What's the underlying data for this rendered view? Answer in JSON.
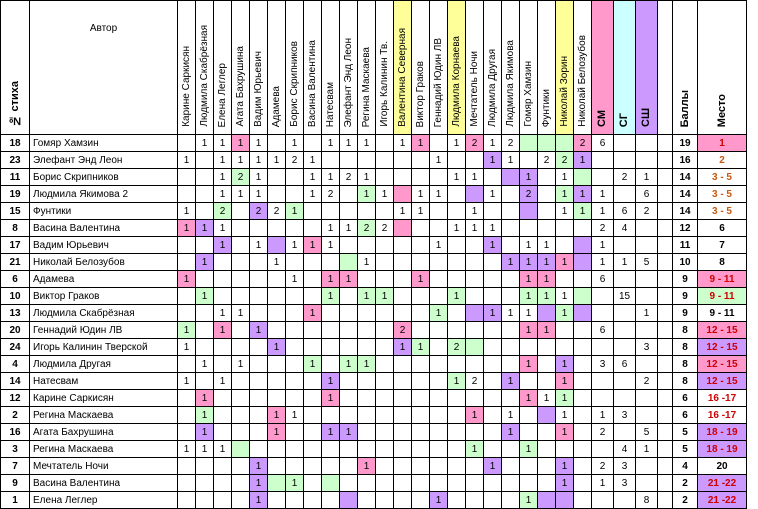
{
  "header": {
    "num": "№ стиха",
    "author": "Автор",
    "voters": [
      "Карине Саркисян",
      "Людмила Скабрёзная",
      "Елена Леглер",
      "Агата Бахрушина",
      "Вадим Юрьевич",
      "Адамева",
      "Борис Скрипников",
      "Васина Валентина",
      "Натесвам",
      "Элефант Энд Леон",
      "Регина Маскаева",
      "Игорь Калинин Тв.",
      "Валентина Северная",
      "Виктор Граков",
      "Геннадий Юдин ЛВ",
      "Людмила Корнаева",
      "Мечтатель Ночи",
      "Людмила Другая",
      "Людмила Якимова",
      "Гомяр Хамзин",
      "Фунтики",
      "Николай Зорин",
      "Николай Белозубов"
    ],
    "cats": [
      "СМ",
      "СГ",
      "СШ"
    ],
    "score": "Баллы",
    "place": "Место"
  },
  "colors": {
    "pink": "#ff99cc",
    "violet": "#cc99ff",
    "green": "#ccffcc",
    "yellow": "#ffff99",
    "cyan": "#ccffff",
    "place_red": "#cc0000",
    "place_orange": "#c65911"
  },
  "rows": [
    {
      "num": "18",
      "author": "Гомяр Хамзин",
      "cells": [
        "",
        "1",
        "1",
        "1",
        "1",
        "",
        "1",
        "",
        "1",
        "1",
        "1",
        "",
        "1",
        "1",
        "",
        "1",
        "2",
        "1",
        "2",
        "",
        "",
        "",
        "2"
      ],
      "cats": [
        "6",
        "",
        ""
      ],
      "score": "19",
      "place": "1"
    },
    {
      "num": "23",
      "author": "Элефант Энд Леон",
      "cells": [
        "1",
        "",
        "1",
        "1",
        "1",
        "1",
        "2",
        "1",
        "",
        "",
        "",
        "",
        "",
        "",
        "1",
        "",
        "",
        "1",
        "1",
        "",
        "2",
        "2",
        "1"
      ],
      "cats": [
        "",
        "",
        ""
      ],
      "score": "16",
      "place": "2"
    },
    {
      "num": "11",
      "author": "Борис Скрипников",
      "cells": [
        "",
        "",
        "1",
        "2",
        "1",
        "",
        "",
        "1",
        "1",
        "2",
        "1",
        "",
        "",
        "",
        "",
        "1",
        "1",
        "",
        "",
        "1",
        "",
        "1",
        ""
      ],
      "cats": [
        "",
        "2",
        "1"
      ],
      "score": "14",
      "place": "3 - 5"
    },
    {
      "num": "19",
      "author": "Людмила Якимова 2",
      "cells": [
        "",
        "",
        "1",
        "1",
        "1",
        "",
        "",
        "1",
        "2",
        "",
        "1",
        "1",
        "",
        "1",
        "1",
        "",
        "",
        "1",
        "",
        "2",
        "",
        "1",
        "1"
      ],
      "cats": [
        "1",
        "",
        "6"
      ],
      "score": "14",
      "place": "3 - 5"
    },
    {
      "num": "15",
      "author": "Фунтики",
      "cells": [
        "1",
        "",
        "2",
        "",
        "2",
        "2",
        "1",
        "",
        "",
        "",
        "",
        "",
        "1",
        "1",
        "",
        "",
        "1",
        "",
        "",
        "",
        "",
        "1",
        "1"
      ],
      "cats": [
        "1",
        "6",
        "2"
      ],
      "score": "14",
      "place": "3 - 5"
    },
    {
      "num": "8",
      "author": "Васина Валентина",
      "cells": [
        "1",
        "1",
        "1",
        "",
        "",
        "",
        "",
        "",
        "1",
        "1",
        "2",
        "2",
        "",
        "",
        "",
        "1",
        "1",
        "1",
        "",
        "",
        "",
        "",
        ""
      ],
      "cats": [
        "2",
        "4",
        ""
      ],
      "score": "12",
      "place": "6"
    },
    {
      "num": "17",
      "author": "Вадим Юрьевич",
      "cells": [
        "",
        "",
        "1",
        "",
        "1",
        "",
        "1",
        "1",
        "1",
        "",
        "",
        "",
        "",
        "",
        "1",
        "",
        "",
        "1",
        "",
        "1",
        "1",
        "",
        ""
      ],
      "cats": [
        "1",
        "",
        ""
      ],
      "score": "11",
      "place": "7"
    },
    {
      "num": "21",
      "author": "Николай Белозубов",
      "cells": [
        "",
        "1",
        "",
        "",
        "",
        "1",
        "",
        "",
        "",
        "",
        "1",
        "",
        "",
        "",
        "",
        "",
        "",
        "",
        "1",
        "1",
        "1",
        "1",
        ""
      ],
      "cats": [
        "1",
        "1",
        "5"
      ],
      "score": "10",
      "place": "8"
    },
    {
      "num": "6",
      "author": "Адамева",
      "cells": [
        "1",
        "",
        "",
        "",
        "",
        "",
        "1",
        "",
        "1",
        "1",
        "",
        "",
        "",
        "1",
        "",
        "",
        "",
        "",
        "",
        "1",
        "1",
        "",
        ""
      ],
      "cats": [
        "6",
        "",
        ""
      ],
      "score": "9",
      "place": "9 - 11"
    },
    {
      "num": "10",
      "author": "Виктор Граков",
      "cells": [
        "",
        "1",
        "",
        "",
        "",
        "",
        "",
        "",
        "1",
        "",
        "1",
        "1",
        "",
        "",
        "",
        "1",
        "",
        "",
        "",
        "1",
        "1",
        "1",
        ""
      ],
      "cats": [
        "",
        "15",
        ""
      ],
      "score": "9",
      "place": "9 - 11"
    },
    {
      "num": "13",
      "author": "Людмила Скабрёзная",
      "cells": [
        "",
        "",
        "1",
        "1",
        "",
        "",
        "",
        "1",
        "",
        "",
        "",
        "",
        "",
        "",
        "1",
        "",
        "",
        "1",
        "1",
        "1",
        "",
        "1",
        ""
      ],
      "cats": [
        "",
        "",
        "1"
      ],
      "score": "9",
      "place": "9 - 11"
    },
    {
      "num": "20",
      "author": "Геннадий Юдин ЛВ",
      "cells": [
        "1",
        "",
        "1",
        "",
        "1",
        "",
        "",
        "",
        "",
        "",
        "",
        "",
        "2",
        "",
        "",
        "",
        "",
        "",
        "",
        "1",
        "1",
        "",
        ""
      ],
      "cats": [
        "6",
        "",
        ""
      ],
      "score": "8",
      "place": "12 - 15"
    },
    {
      "num": "24",
      "author": "Игорь Калинин Тверской",
      "cells": [
        "1",
        "",
        "",
        "",
        "",
        "1",
        "",
        "",
        "",
        "",
        "",
        "",
        "1",
        "1",
        "",
        "2",
        "",
        "",
        "",
        "",
        "",
        "",
        ""
      ],
      "cats": [
        "",
        "",
        "3"
      ],
      "score": "8",
      "place": "12 - 15"
    },
    {
      "num": "4",
      "author": "Людмила Другая",
      "cells": [
        "",
        "1",
        "",
        "1",
        "",
        "",
        "",
        "1",
        "",
        "1",
        "1",
        "",
        "",
        "",
        "",
        "",
        "",
        "",
        "",
        "1",
        "",
        "1",
        ""
      ],
      "cats": [
        "3",
        "6",
        ""
      ],
      "score": "8",
      "place": "12 - 15"
    },
    {
      "num": "14",
      "author": "Натесвам",
      "cells": [
        "1",
        "",
        "1",
        "",
        "",
        "",
        "",
        "",
        "1",
        "",
        "",
        "",
        "",
        "",
        "",
        "1",
        "2",
        "",
        "1",
        "",
        "",
        "1",
        ""
      ],
      "cats": [
        "",
        "",
        "2"
      ],
      "score": "8",
      "place": "12 - 15"
    },
    {
      "num": "12",
      "author": "Карине Саркисян",
      "cells": [
        "",
        "1",
        "",
        "",
        "",
        "",
        "",
        "",
        "1",
        "",
        "",
        "",
        "",
        "",
        "",
        "",
        "",
        "",
        "",
        "1",
        "1",
        "1",
        ""
      ],
      "cats": [
        "",
        "",
        ""
      ],
      "score": "6",
      "place": "16 -17"
    },
    {
      "num": "2",
      "author": "Регина Маскаева",
      "cells": [
        "",
        "1",
        "",
        "",
        "",
        "1",
        "1",
        "",
        "",
        "",
        "",
        "",
        "",
        "",
        "",
        "",
        "1",
        "",
        "1",
        "",
        "",
        "1",
        ""
      ],
      "cats": [
        "1",
        "3",
        ""
      ],
      "score": "6",
      "place": "16 -17"
    },
    {
      "num": "16",
      "author": "Агата Бахрушина",
      "cells": [
        "",
        "1",
        "",
        "",
        "",
        "1",
        "",
        "",
        "1",
        "1",
        "",
        "",
        "",
        "",
        "",
        "",
        "",
        "",
        "1",
        "",
        "",
        "1",
        ""
      ],
      "cats": [
        "2",
        "",
        "5"
      ],
      "score": "5",
      "place": "18 - 19"
    },
    {
      "num": "3",
      "author": "Регина Маскаева",
      "cells": [
        "1",
        "1",
        "1",
        "",
        "",
        "",
        "",
        "",
        "",
        "",
        "",
        "",
        "",
        "",
        "",
        "",
        "1",
        "",
        "",
        "1",
        "",
        "",
        ""
      ],
      "cats": [
        "",
        "4",
        "1"
      ],
      "score": "5",
      "place": "18 - 19"
    },
    {
      "num": "7",
      "author": "Мечтатель Ночи",
      "cells": [
        "",
        "",
        "",
        "",
        "1",
        "",
        "",
        "",
        "",
        "",
        "1",
        "",
        "",
        "",
        "",
        "",
        "",
        "1",
        "",
        "",
        "",
        "1",
        ""
      ],
      "cats": [
        "2",
        "3",
        ""
      ],
      "score": "4",
      "place": "20"
    },
    {
      "num": "9",
      "author": "Васина Валентина",
      "cells": [
        "",
        "",
        "",
        "",
        "1",
        "",
        "1",
        "",
        "",
        "",
        "",
        "",
        "",
        "",
        "",
        "",
        "",
        "",
        "",
        "",
        "",
        "1",
        ""
      ],
      "cats": [
        "1",
        "3",
        ""
      ],
      "score": "2",
      "place": "21 -22"
    },
    {
      "num": "1",
      "author": "Елена Леглер",
      "cells": [
        "",
        "",
        "",
        "",
        "1",
        "",
        "",
        "",
        "",
        "",
        "",
        "",
        "",
        "",
        "1",
        "",
        "",
        "",
        "",
        "1",
        "",
        "",
        ""
      ],
      "cats": [
        "",
        "",
        "8"
      ],
      "score": "2",
      "place": "21 -22"
    }
  ]
}
